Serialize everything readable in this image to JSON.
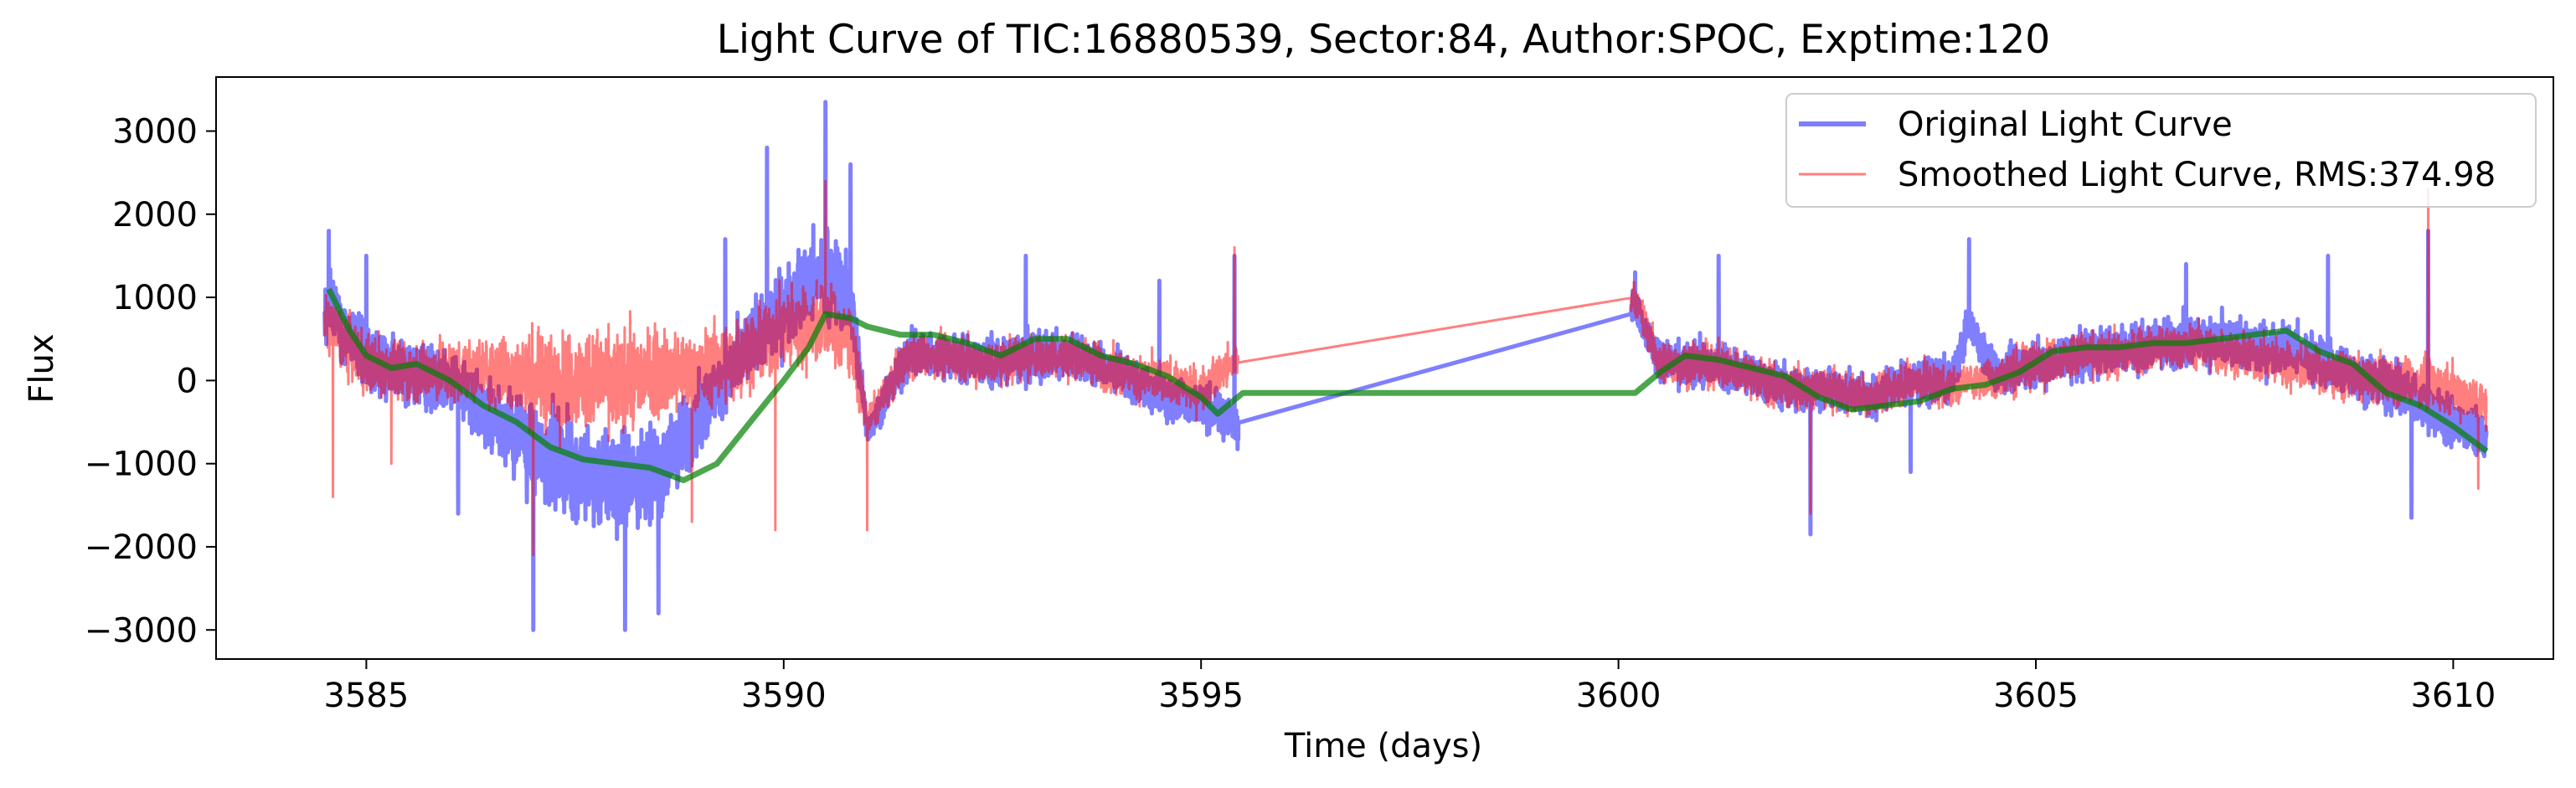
{
  "chart_data": {
    "type": "line",
    "title": "Light Curve of TIC:16880539, Sector:84, Author:SPOC, Exptime:120",
    "xlabel": "Time (days)",
    "ylabel": "Flux",
    "xlim": [
      3583.2,
      3611.2
    ],
    "ylim": [
      -3350,
      3650
    ],
    "xticks": [
      3585,
      3590,
      3595,
      3600,
      3605,
      3610
    ],
    "yticks": [
      -3000,
      -2000,
      -1000,
      0,
      1000,
      2000,
      3000
    ],
    "grid": false,
    "legend_position": "top-right",
    "series": [
      {
        "name": "Original Light Curve",
        "color": "#0000ff",
        "style": "noisy",
        "x": [
          3584.5,
          3585.0,
          3585.5,
          3586.0,
          3586.5,
          3587.0,
          3587.5,
          3588.0,
          3588.5,
          3589.0,
          3589.5,
          3590.0,
          3590.5,
          3590.8,
          3591.0,
          3591.5,
          3592.0,
          3592.5,
          3593.0,
          3593.5,
          3594.0,
          3594.5,
          3595.0,
          3595.4,
          3600.2,
          3600.5,
          3601.0,
          3601.5,
          3602.0,
          3602.5,
          3603.0,
          3603.5,
          3604.0,
          3604.2,
          3604.5,
          3605.0,
          3605.5,
          3606.0,
          3606.5,
          3607.0,
          3607.5,
          3608.0,
          3608.5,
          3609.0,
          3609.5,
          3610.0,
          3610.4
        ],
        "y": [
          900,
          300,
          100,
          0,
          -400,
          -800,
          -1100,
          -1200,
          -1100,
          -400,
          300,
          900,
          1300,
          1000,
          -600,
          300,
          300,
          200,
          300,
          300,
          100,
          -200,
          -300,
          -500,
          900,
          200,
          200,
          100,
          -100,
          -100,
          -200,
          0,
          0,
          700,
          100,
          200,
          300,
          400,
          450,
          500,
          400,
          400,
          200,
          0,
          -200,
          -500,
          -700
        ],
        "amplitude": [
          700,
          700,
          600,
          600,
          700,
          900,
          1000,
          1000,
          900,
          700,
          700,
          800,
          900,
          800,
          300,
          450,
          450,
          500,
          500,
          450,
          450,
          450,
          450,
          400,
          300,
          450,
          450,
          450,
          450,
          400,
          400,
          450,
          450,
          300,
          450,
          450,
          500,
          500,
          500,
          500,
          500,
          500,
          500,
          500,
          500,
          500,
          400
        ],
        "spikes": [
          {
            "x": 3584.55,
            "y": 1800
          },
          {
            "x": 3585.0,
            "y": 1500
          },
          {
            "x": 3586.1,
            "y": -1600
          },
          {
            "x": 3587.0,
            "y": -3000
          },
          {
            "x": 3588.1,
            "y": -3000
          },
          {
            "x": 3588.5,
            "y": -2800
          },
          {
            "x": 3589.3,
            "y": 1700
          },
          {
            "x": 3589.8,
            "y": 2800
          },
          {
            "x": 3590.5,
            "y": 3350
          },
          {
            "x": 3590.8,
            "y": 2600
          },
          {
            "x": 3592.9,
            "y": 1500
          },
          {
            "x": 3594.5,
            "y": 1200
          },
          {
            "x": 3595.4,
            "y": 1500
          },
          {
            "x": 3600.2,
            "y": 1300
          },
          {
            "x": 3601.2,
            "y": 1500
          },
          {
            "x": 3602.3,
            "y": -1850
          },
          {
            "x": 3603.5,
            "y": -1100
          },
          {
            "x": 3604.2,
            "y": 1700
          },
          {
            "x": 3606.8,
            "y": 1400
          },
          {
            "x": 3608.5,
            "y": 1500
          },
          {
            "x": 3609.5,
            "y": -1650
          },
          {
            "x": 3609.7,
            "y": 1800
          }
        ]
      },
      {
        "name": "Smoothed Light Curve, RMS:374.98",
        "color": "#ff0000",
        "style": "noisy",
        "x": [
          3584.5,
          3585.0,
          3585.5,
          3586.0,
          3586.5,
          3587.0,
          3587.5,
          3588.0,
          3588.5,
          3589.0,
          3589.5,
          3590.0,
          3590.5,
          3590.8,
          3591.0,
          3591.5,
          3592.0,
          3592.5,
          3593.0,
          3593.5,
          3594.0,
          3594.5,
          3595.0,
          3595.4,
          3600.2,
          3600.5,
          3601.0,
          3601.5,
          3602.0,
          3602.5,
          3603.0,
          3603.5,
          3604.0,
          3604.2,
          3604.5,
          3605.0,
          3605.5,
          3606.0,
          3606.5,
          3607.0,
          3607.5,
          3608.0,
          3608.5,
          3609.0,
          3609.5,
          3610.0,
          3610.4
        ],
        "y": [
          700,
          200,
          100,
          100,
          100,
          0,
          0,
          0,
          100,
          100,
          300,
          600,
          700,
          500,
          -500,
          300,
          300,
          200,
          300,
          300,
          100,
          0,
          -100,
          200,
          1000,
          200,
          200,
          100,
          -100,
          -100,
          -200,
          0,
          -100,
          0,
          0,
          200,
          300,
          300,
          400,
          400,
          300,
          200,
          100,
          0,
          0,
          -100,
          -300
        ],
        "amplitude": [
          600,
          600,
          600,
          600,
          700,
          900,
          1000,
          1000,
          900,
          800,
          800,
          800,
          800,
          700,
          300,
          450,
          450,
          450,
          450,
          450,
          450,
          450,
          450,
          400,
          300,
          450,
          450,
          450,
          450,
          400,
          400,
          450,
          450,
          300,
          450,
          450,
          450,
          450,
          450,
          450,
          450,
          450,
          450,
          450,
          500,
          500,
          450
        ],
        "spikes": [
          {
            "x": 3584.6,
            "y": -1400
          },
          {
            "x": 3585.3,
            "y": -1000
          },
          {
            "x": 3587.0,
            "y": -2100
          },
          {
            "x": 3588.9,
            "y": -1700
          },
          {
            "x": 3589.9,
            "y": -1800
          },
          {
            "x": 3590.5,
            "y": 2400
          },
          {
            "x": 3591.0,
            "y": -1800
          },
          {
            "x": 3595.4,
            "y": 1600
          },
          {
            "x": 3602.3,
            "y": -1600
          },
          {
            "x": 3609.7,
            "y": 2300
          },
          {
            "x": 3610.3,
            "y": -1300
          }
        ]
      },
      {
        "name": "",
        "color": "#008000",
        "style": "smooth",
        "x": [
          3584.55,
          3584.8,
          3585.0,
          3585.3,
          3585.6,
          3586.0,
          3586.4,
          3586.8,
          3587.2,
          3587.6,
          3588.0,
          3588.4,
          3588.8,
          3589.2,
          3589.6,
          3590.0,
          3590.3,
          3590.5,
          3590.8,
          3591.0,
          3591.4,
          3591.8,
          3592.2,
          3592.6,
          3593.0,
          3593.4,
          3593.8,
          3594.2,
          3594.6,
          3595.0,
          3595.2,
          3595.5,
          3600.2,
          3600.5,
          3600.8,
          3601.2,
          3601.6,
          3602.0,
          3602.4,
          3602.8,
          3603.2,
          3603.6,
          3604.0,
          3604.4,
          3604.8,
          3605.2,
          3605.6,
          3606.0,
          3606.4,
          3606.8,
          3607.2,
          3607.6,
          3608.0,
          3608.4,
          3608.8,
          3609.2,
          3609.6,
          3610.0,
          3610.4
        ],
        "y": [
          1100,
          600,
          300,
          150,
          200,
          0,
          -300,
          -500,
          -800,
          -950,
          -1000,
          -1050,
          -1200,
          -1000,
          -500,
          0,
          400,
          800,
          750,
          650,
          550,
          550,
          450,
          300,
          500,
          500,
          300,
          200,
          50,
          -200,
          -400,
          -150,
          -150,
          100,
          300,
          250,
          150,
          50,
          -200,
          -350,
          -300,
          -250,
          -100,
          -50,
          100,
          350,
          400,
          400,
          450,
          450,
          500,
          550,
          600,
          350,
          200,
          -150,
          -300,
          -550,
          -850
        ]
      }
    ]
  }
}
